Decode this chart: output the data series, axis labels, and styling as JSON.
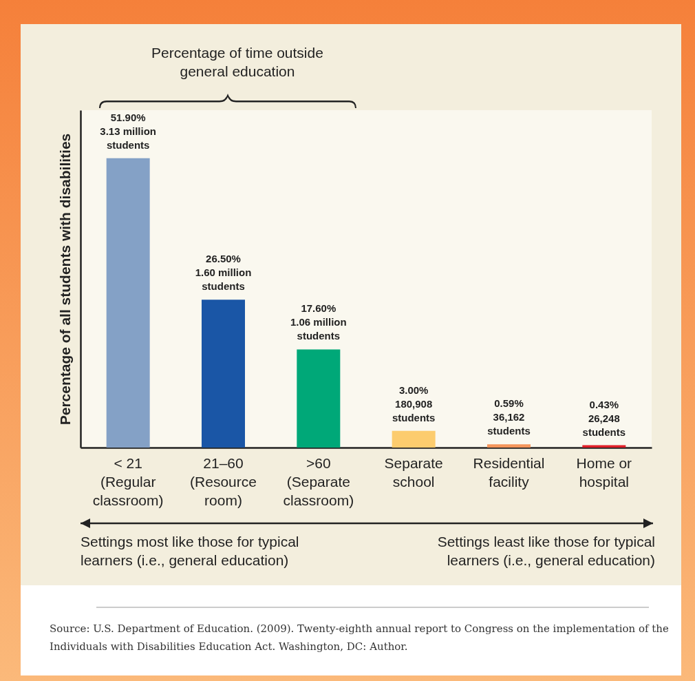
{
  "chart_data": {
    "type": "bar",
    "ylabel": "Percentage of all students with disabilities",
    "categories": [
      "< 21\n(Regular\nclassroom)",
      "21–60\n(Resource\nroom)",
      ">60\n(Separate\nclassroom)",
      "Separate\nschool",
      "Residential\nfacility",
      "Home or\nhospital"
    ],
    "values": [
      51.9,
      26.5,
      17.6,
      3.0,
      0.59,
      0.43
    ],
    "colors": [
      "#84a1c6",
      "#1a56a6",
      "#00a878",
      "#fccc6e",
      "#f4955b",
      "#e0202a"
    ],
    "value_labels": [
      "51.90%\n3.13 million\nstudents",
      "26.50%\n1.60 million\nstudents",
      "17.60%\n1.06 million\nstudents",
      "3.00%\n180,908\nstudents",
      "0.59%\n36,162\nstudents",
      "0.43%\n26,248\nstudents"
    ],
    "ylim": [
      0,
      60.5
    ],
    "grid": false,
    "legend": false,
    "annotations": [
      "Percentage of time outside general education",
      "Settings most like those for typical learners (i.e., general education)",
      "Settings least like those for typical learners (i.e., general education)",
      "Source: U.S. Department of Education. (2009). Twenty-eighth annual report to Congress on the implementation of the Individuals with Disabilities Education Act. Washington, DC: Author."
    ]
  }
}
